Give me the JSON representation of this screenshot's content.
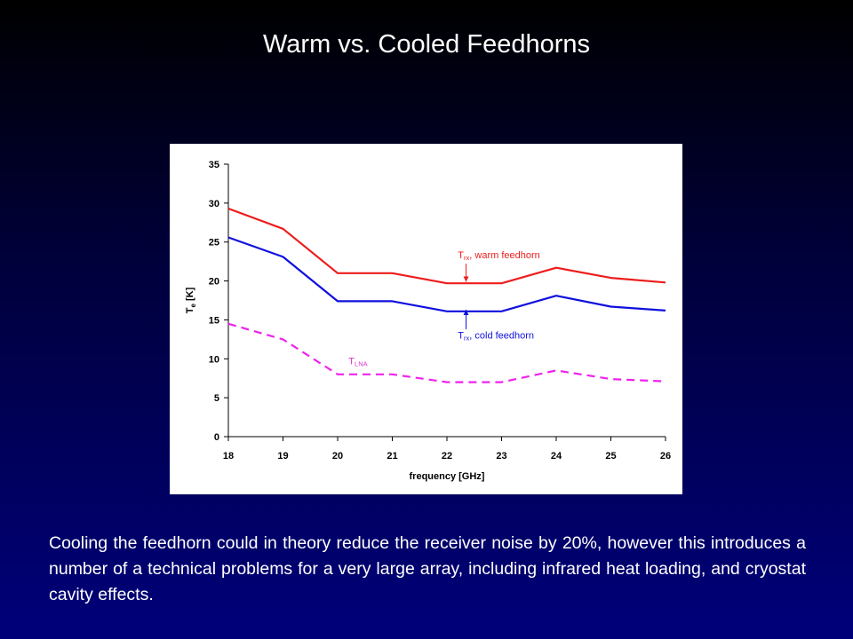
{
  "slide": {
    "title": "Warm vs. Cooled Feedhorns",
    "caption": "Cooling the feedhorn could in theory reduce the receiver noise by 20%, however this introduces a number of a technical problems for a very large array, including infrared heat loading, and cryostat cavity effects."
  },
  "chart_data": {
    "type": "line",
    "xlabel": "frequency [GHz]",
    "ylabel_main": "T",
    "ylabel_sub": "e",
    "ylabel_unit": " [K]",
    "xlim": [
      18,
      26
    ],
    "ylim": [
      0,
      35
    ],
    "xticks": [
      18,
      19,
      20,
      21,
      22,
      23,
      24,
      25,
      26
    ],
    "yticks": [
      0,
      5,
      10,
      15,
      20,
      25,
      30,
      35
    ],
    "grid": false,
    "x": [
      18,
      19,
      20,
      21,
      22,
      23,
      24,
      25,
      26
    ],
    "series": [
      {
        "key": "warm",
        "values": [
          29.3,
          26.7,
          21.0,
          21.0,
          19.7,
          19.7,
          21.7,
          20.4,
          19.8
        ],
        "color": "#ee1c1c",
        "dash": "solid",
        "label_main": "T",
        "label_sub": "rx",
        "label_rest": ", warm feedhorn",
        "label_color": "#ee1c1c"
      },
      {
        "key": "cold",
        "values": [
          25.6,
          23.1,
          17.4,
          17.4,
          16.1,
          16.1,
          18.1,
          16.7,
          16.2
        ],
        "color": "#1010dd",
        "dash": "solid",
        "label_main": "T",
        "label_sub": "rx",
        "label_rest": ", cold feedhorn",
        "label_color": "#1010dd"
      },
      {
        "key": "lna",
        "values": [
          14.5,
          12.5,
          8.0,
          8.0,
          7.0,
          7.0,
          8.5,
          7.4,
          7.1
        ],
        "color": "#ee22ee",
        "dash": "dashed",
        "label_main": "T",
        "label_sub": "LNA",
        "label_rest": "",
        "label_color": "#dd33cc"
      }
    ],
    "annotations": [
      {
        "series": "warm",
        "text_x": 22.2,
        "text_y": 22.9,
        "arrow_x": 22.35,
        "arrow_from_y": 22.2,
        "arrow_to_y": 19.9
      },
      {
        "series": "cold",
        "text_x": 22.2,
        "text_y": 12.6,
        "arrow_x": 22.35,
        "arrow_from_y": 13.8,
        "arrow_to_y": 16.3
      },
      {
        "series": "lna",
        "text_x": 20.2,
        "text_y": 9.3
      }
    ]
  }
}
